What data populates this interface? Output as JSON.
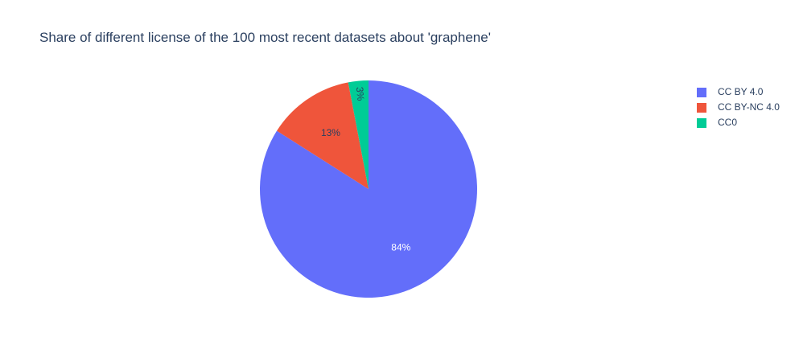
{
  "chart_data": {
    "type": "pie",
    "title": "Share of different license of the 100 most recent datasets about 'graphene'",
    "categories": [
      "CC BY 4.0",
      "CC BY-NC 4.0",
      "CC0"
    ],
    "values": [
      84,
      13,
      3
    ],
    "labels": [
      "84%",
      "13%",
      "3%"
    ],
    "colors": [
      "#636efa",
      "#ef553b",
      "#00cc96"
    ],
    "label_colors": [
      "#ffffff",
      "#2a3f5f",
      "#2a3f5f"
    ],
    "direction": "clockwise",
    "start": "top",
    "legend_position": "top-right"
  }
}
